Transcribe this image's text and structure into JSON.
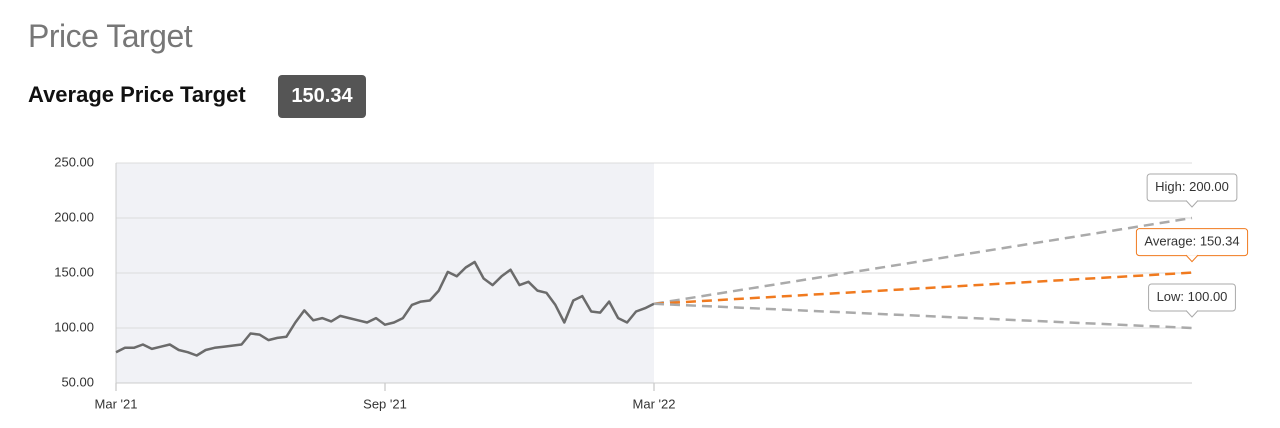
{
  "header": {
    "title": "Price Target",
    "subtitle": "Average Price Target",
    "average": 150.34
  },
  "chart_data": {
    "type": "line",
    "xlim": [
      0,
      24
    ],
    "xticks": [
      {
        "value": 0,
        "label": "Mar '21"
      },
      {
        "value": 6,
        "label": "Sep '21"
      },
      {
        "value": 12,
        "label": "Mar '22"
      }
    ],
    "ylim": [
      50,
      250
    ],
    "yticks": [
      {
        "value": 50,
        "label": "50.00"
      },
      {
        "value": 100,
        "label": "100.00"
      },
      {
        "value": 150,
        "label": "150.00"
      },
      {
        "value": 200,
        "label": "200.00"
      },
      {
        "value": 250,
        "label": "250.00"
      }
    ],
    "grid": true,
    "shaded_xrange": [
      0,
      12
    ],
    "series": [
      {
        "color": "#6b6b6b",
        "x": [
          0,
          0.2,
          0.4,
          0.6,
          0.8,
          1,
          1.2,
          1.4,
          1.6,
          1.8,
          2,
          2.2,
          2.4,
          2.6,
          2.8,
          3,
          3.2,
          3.4,
          3.6,
          3.8,
          4,
          4.2,
          4.4,
          4.6,
          4.8,
          5,
          5.2,
          5.4,
          5.6,
          5.8,
          6,
          6.2,
          6.4,
          6.6,
          6.8,
          7,
          7.2,
          7.4,
          7.6,
          7.8,
          8,
          8.2,
          8.4,
          8.6,
          8.8,
          9,
          9.2,
          9.4,
          9.6,
          9.8,
          10,
          10.2,
          10.4,
          10.6,
          10.8,
          11,
          11.2,
          11.4,
          11.6,
          11.8,
          12
        ],
        "values": [
          78,
          82,
          82,
          85,
          81,
          83,
          85,
          80,
          78,
          75,
          80,
          82,
          83,
          84,
          85,
          95,
          94,
          89,
          91,
          92,
          105,
          116,
          107,
          109,
          106,
          111,
          109,
          107,
          105,
          109,
          103,
          105,
          109,
          121,
          124,
          125,
          134,
          151,
          147,
          155,
          160,
          145,
          139,
          147,
          153,
          139,
          142,
          134,
          132,
          121,
          105,
          125,
          129,
          115,
          114,
          124,
          109,
          105,
          115,
          118,
          122
        ]
      }
    ],
    "targets": [
      {
        "label": "High: 200.00",
        "color": "#aaaaaa",
        "x": [
          12,
          24
        ],
        "values": [
          122,
          200
        ]
      },
      {
        "label": "Average: 150.34",
        "color": "#f07a1f",
        "x": [
          12,
          24
        ],
        "values": [
          122,
          150.34
        ]
      },
      {
        "label": "Low: 100.00",
        "color": "#aaaaaa",
        "x": [
          12,
          24
        ],
        "values": [
          122,
          100
        ]
      }
    ]
  }
}
